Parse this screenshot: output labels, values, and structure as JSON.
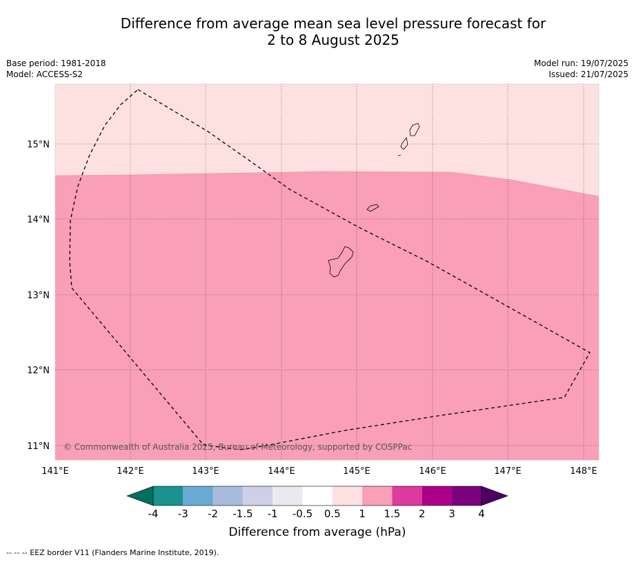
{
  "title_line1": "Difference from average mean sea level pressure forecast for",
  "title_line2": "2 to 8 August 2025",
  "meta_left": {
    "base_period": "Base period: 1981-2018",
    "model": "Model: ACCESS-S2"
  },
  "meta_right": {
    "model_run": "Model run: 19/07/2025",
    "issued": "Issued: 21/07/2025"
  },
  "lon_labels": [
    "141°E",
    "142°E",
    "143°E",
    "144°E",
    "145°E",
    "146°E",
    "147°E",
    "148°E"
  ],
  "lat_labels": [
    "15°N",
    "14°N",
    "13°N",
    "12°N",
    "11°N"
  ],
  "copyright": "© Commonwealth of Australia 2025, Bureau of Meteorology, supported by COSPPac",
  "colorbar": {
    "labels": [
      "-4",
      "-3",
      "-2",
      "-1.5",
      "-1",
      "-0.5",
      "0.5",
      "1",
      "1.5",
      "2",
      "3",
      "4"
    ],
    "colors": [
      "#006f5f",
      "#1a9290",
      "#69a9d2",
      "#a8bbdc",
      "#cfd0e8",
      "#ebe9ef",
      "#ffffff",
      "#fde1e1",
      "#f99fb7",
      "#de3aa0",
      "#ad0088",
      "#7b007d",
      "#4d0062"
    ],
    "title": "Difference from average (hPa)"
  },
  "map_colors": {
    "low_band": "#fde1e1",
    "high_band": "#f99fb7"
  },
  "footer": "-- -- -- EEZ border V11 (Flanders Marine Institute, 2019)."
}
